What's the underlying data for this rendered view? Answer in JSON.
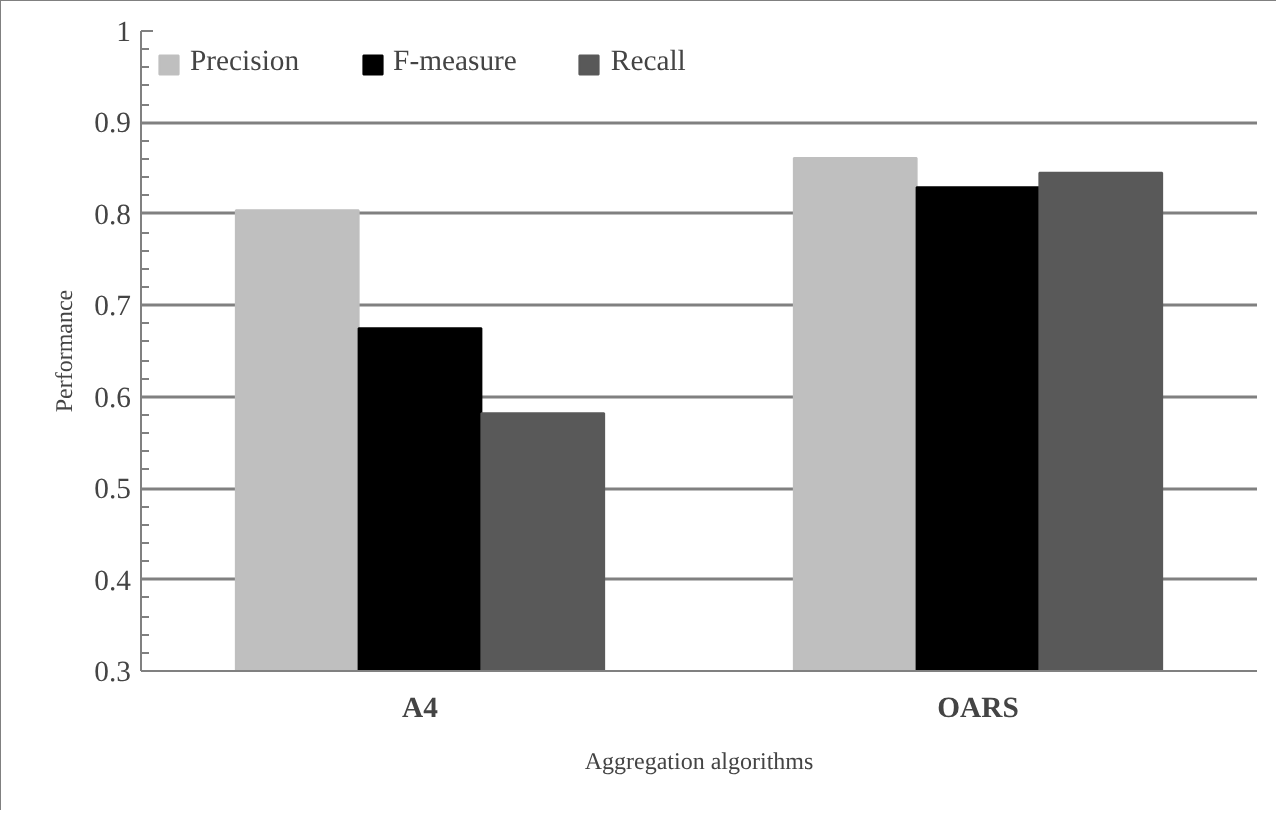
{
  "chart_data": {
    "type": "bar",
    "xlabel": "Aggregation algorithms",
    "ylabel": "Performance",
    "categories": [
      "A4",
      "OARS"
    ],
    "series": [
      {
        "name": "Precision",
        "color": "#bfbfbf",
        "values": [
          0.804,
          0.861
        ]
      },
      {
        "name": "F-measure",
        "color": "#000000",
        "values": [
          0.675,
          0.829
        ]
      },
      {
        "name": "Recall",
        "color": "#595959",
        "values": [
          0.582,
          0.845
        ]
      }
    ],
    "ylim": [
      0.3,
      1
    ],
    "yticks": [
      0.3,
      0.4,
      0.5,
      0.6,
      0.7,
      0.8,
      0.9,
      1
    ],
    "grid": "y",
    "legend": "top left"
  }
}
